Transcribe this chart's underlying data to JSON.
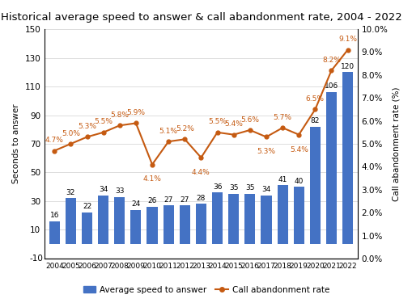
{
  "title": "Historical average speed to answer & call abandonment rate, 2004 - 2022",
  "years": [
    2004,
    2005,
    2006,
    2007,
    2008,
    2009,
    2010,
    2011,
    2012,
    2013,
    2014,
    2015,
    2016,
    2017,
    2018,
    2019,
    2020,
    2021,
    2022
  ],
  "bar_values": [
    16,
    32,
    22,
    34,
    33,
    24,
    26,
    27,
    27,
    28,
    36,
    35,
    35,
    34,
    41,
    40,
    82,
    106,
    120
  ],
  "line_values": [
    4.7,
    5.0,
    5.3,
    5.5,
    5.8,
    5.9,
    4.1,
    5.1,
    5.2,
    4.4,
    5.5,
    5.4,
    5.6,
    5.3,
    5.7,
    5.4,
    6.5,
    8.2,
    9.1
  ],
  "bar_color": "#4472C4",
  "line_color": "#C55A11",
  "ylabel_left": "Seconds to answer",
  "ylabel_right": "Call abandonment rate (%)",
  "ylim_left": [
    -10,
    150
  ],
  "ylim_right": [
    0.0,
    10.0
  ],
  "yticks_left": [
    10,
    30,
    50,
    70,
    90,
    110,
    130,
    150
  ],
  "yticks_right": [
    0.0,
    1.0,
    2.0,
    3.0,
    4.0,
    5.0,
    6.0,
    7.0,
    8.0,
    9.0,
    10.0
  ],
  "legend_bar": "Average speed to answer",
  "legend_line": "Call abandonment rate",
  "background_color": "#ffffff",
  "title_fontsize": 9.5,
  "axis_fontsize": 7.5,
  "label_fontsize": 6.5,
  "line_label_offsets": [
    [
      0,
      6
    ],
    [
      0,
      6
    ],
    [
      0,
      6
    ],
    [
      0,
      6
    ],
    [
      0,
      6
    ],
    [
      0,
      6
    ],
    [
      0,
      -10
    ],
    [
      0,
      6
    ],
    [
      0,
      6
    ],
    [
      0,
      -10
    ],
    [
      0,
      6
    ],
    [
      0,
      6
    ],
    [
      0,
      6
    ],
    [
      0,
      -10
    ],
    [
      0,
      6
    ],
    [
      0,
      -10
    ],
    [
      0,
      6
    ],
    [
      0,
      6
    ],
    [
      0,
      6
    ]
  ]
}
